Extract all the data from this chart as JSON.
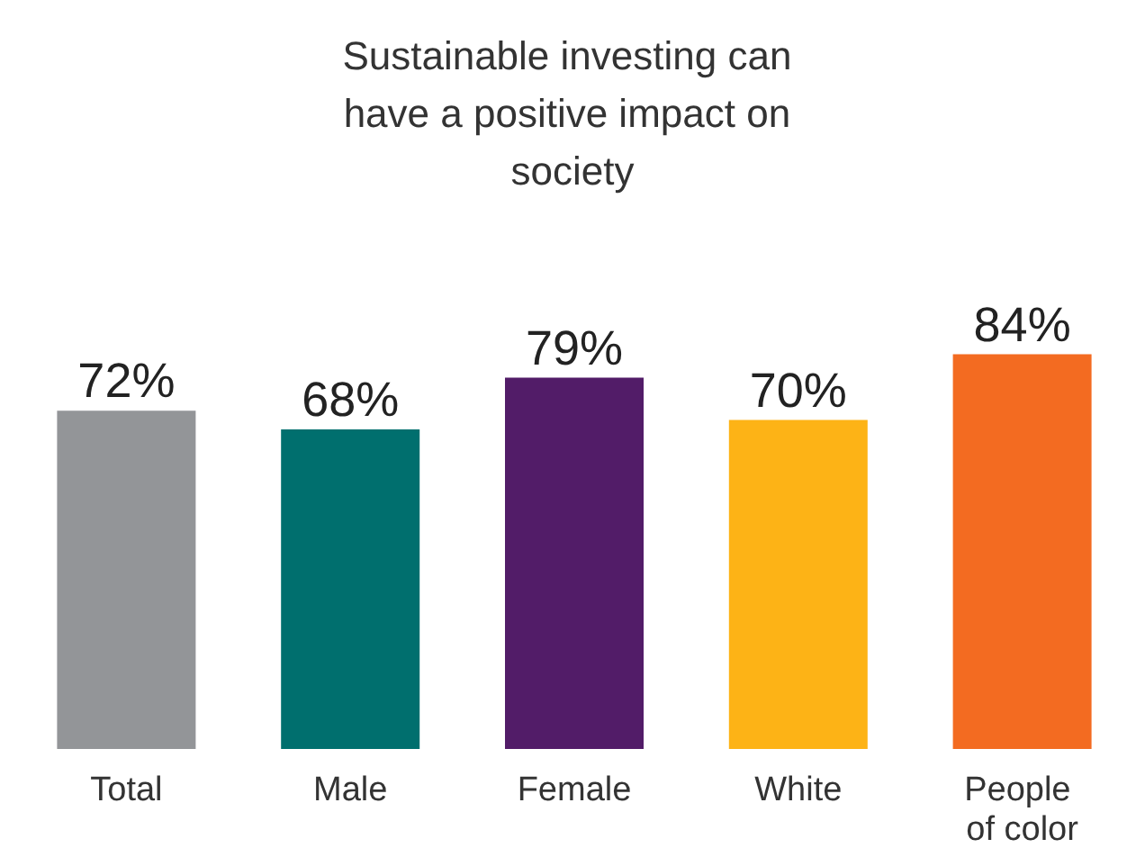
{
  "chart_data": {
    "type": "bar",
    "title": "Sustainable investing can have a positive impact on society",
    "categories": [
      "Total",
      "Male",
      "Female",
      "White",
      "People of color"
    ],
    "values": [
      72,
      68,
      79,
      70,
      84
    ],
    "value_labels": [
      "72%",
      "68%",
      "79%",
      "70%",
      "84%"
    ],
    "colors": [
      "#939598",
      "#006f6e",
      "#521c68",
      "#fdb316",
      "#f36b21"
    ]
  }
}
